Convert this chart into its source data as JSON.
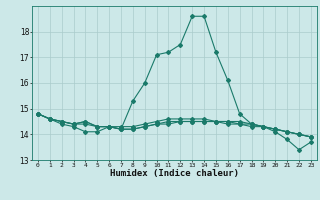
{
  "title": "",
  "xlabel": "Humidex (Indice chaleur)",
  "bg_color": "#cce8e8",
  "grid_color": "#aacccc",
  "line_color": "#1a7a6a",
  "xlim": [
    -0.5,
    23.5
  ],
  "ylim": [
    13,
    19
  ],
  "yticks": [
    13,
    14,
    15,
    16,
    17,
    18
  ],
  "xticks": [
    0,
    1,
    2,
    3,
    4,
    5,
    6,
    7,
    8,
    9,
    10,
    11,
    12,
    13,
    14,
    15,
    16,
    17,
    18,
    19,
    20,
    21,
    22,
    23
  ],
  "series": [
    [
      14.8,
      14.6,
      14.4,
      14.3,
      14.1,
      14.1,
      14.3,
      14.2,
      15.3,
      16.0,
      17.1,
      17.2,
      17.5,
      18.6,
      18.6,
      17.2,
      16.1,
      14.8,
      14.4,
      14.3,
      14.1,
      13.8,
      13.4,
      13.7
    ],
    [
      14.8,
      14.6,
      14.5,
      14.4,
      14.4,
      14.3,
      14.3,
      14.2,
      14.2,
      14.3,
      14.4,
      14.4,
      14.5,
      14.5,
      14.5,
      14.5,
      14.5,
      14.5,
      14.4,
      14.3,
      14.2,
      14.1,
      14.0,
      13.9
    ],
    [
      14.8,
      14.6,
      14.5,
      14.4,
      14.5,
      14.3,
      14.3,
      14.3,
      14.3,
      14.4,
      14.5,
      14.6,
      14.6,
      14.6,
      14.6,
      14.5,
      14.5,
      14.4,
      14.4,
      14.3,
      14.2,
      14.1,
      14.0,
      13.9
    ],
    [
      14.8,
      14.6,
      14.5,
      14.4,
      14.5,
      14.3,
      14.3,
      14.2,
      14.2,
      14.3,
      14.4,
      14.5,
      14.5,
      14.5,
      14.5,
      14.5,
      14.4,
      14.4,
      14.3,
      14.3,
      14.2,
      14.1,
      14.0,
      13.9
    ]
  ]
}
